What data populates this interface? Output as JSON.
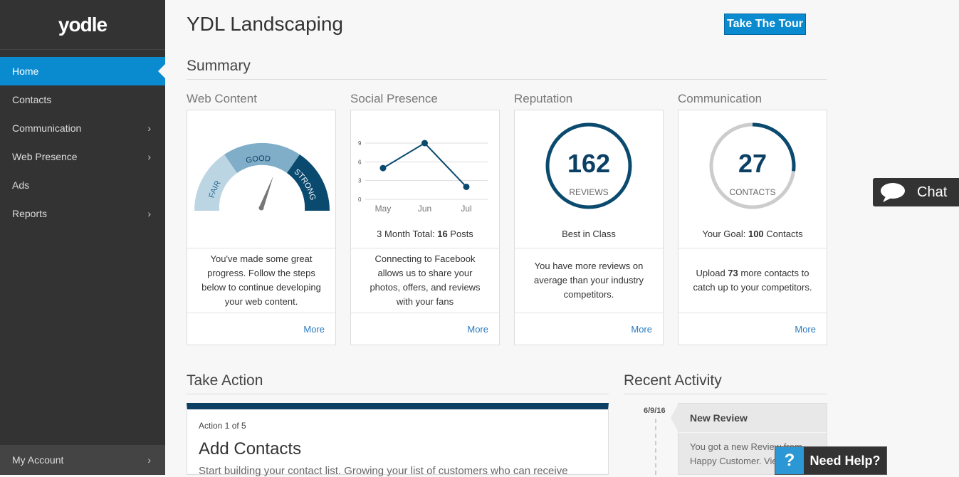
{
  "sidebar": {
    "logo": "yodle",
    "items": [
      {
        "label": "Home",
        "active": true
      },
      {
        "label": "Contacts"
      },
      {
        "label": "Communication",
        "chevron": true
      },
      {
        "label": "Web Presence",
        "chevron": true
      },
      {
        "label": "Ads"
      },
      {
        "label": "Reports",
        "chevron": true
      }
    ],
    "account": "My Account"
  },
  "header": {
    "title": "YDL Landscaping",
    "tour_button": "Take The Tour"
  },
  "summary": {
    "title": "Summary",
    "web_content": {
      "label": "Web Content",
      "gauge": {
        "fair": "FAIR",
        "good": "GOOD",
        "strong": "STRONG"
      },
      "desc": "You've made some great progress. Follow the steps below to continue developing your web content.",
      "more": "More"
    },
    "social": {
      "label": "Social Presence",
      "caption_pre": "3 Month Total: ",
      "caption_num": "16",
      "caption_post": " Posts",
      "desc": "Connecting to Facebook allows us to share your photos, offers, and reviews with your fans",
      "more": "More"
    },
    "reputation": {
      "label": "Reputation",
      "number": "162",
      "unit": "REVIEWS",
      "caption": "Best in Class",
      "desc": "You have more reviews on average than your industry competitors.",
      "more": "More"
    },
    "communication": {
      "label": "Communication",
      "number": "27",
      "unit": "CONTACTS",
      "caption_pre": "Your Goal: ",
      "caption_num": "100",
      "caption_post": " Contacts",
      "desc_pre": "Upload ",
      "desc_num": "73",
      "desc_post": " more contacts to catch up to your competitors.",
      "more": "More",
      "progress": 0.27
    }
  },
  "chart_data": {
    "type": "line",
    "categories": [
      "May",
      "Jun",
      "Jul"
    ],
    "values": [
      5,
      9,
      2
    ],
    "yticks": [
      "0",
      "3",
      "6",
      "9"
    ],
    "ylim": [
      0,
      9
    ]
  },
  "take_action": {
    "title": "Take Action",
    "counter": "Action 1 of 5",
    "heading": "Add Contacts",
    "text": "Start building your contact list. Growing your list of customers who can receive"
  },
  "recent_activity": {
    "title": "Recent Activity",
    "date": "6/9/16",
    "heading": "New Review",
    "text": "You got a new Review from Happy Customer. View"
  },
  "chat": {
    "label": "Chat"
  },
  "help": {
    "icon": "?",
    "label": "Need Help?"
  },
  "colors": {
    "accent": "#0a8bd0",
    "navy": "#0b3f64"
  }
}
